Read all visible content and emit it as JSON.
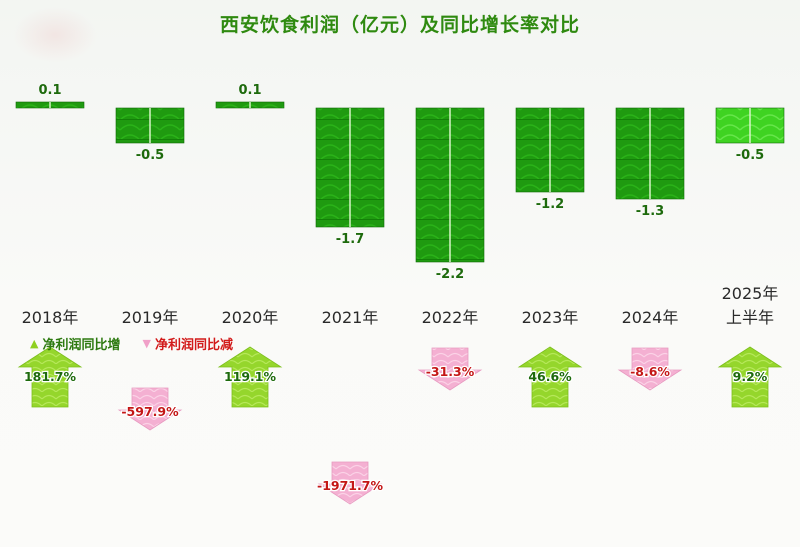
{
  "title": "西安饮食利润（亿元）及同比增长率对比",
  "legend": {
    "up_label": "净利润同比增",
    "down_label": "净利润同比减"
  },
  "colors": {
    "title": "#2f8a10",
    "bar": "#1f9a10",
    "bar_light": "#44d62a",
    "up_arrow": "#9bd832",
    "down_arrow": "#f6b3d4",
    "up_text": "#1d6a0c",
    "down_text": "#c41616"
  },
  "chart_data": {
    "type": "bar",
    "title": "西安饮食利润（亿元）及同比增长率对比",
    "categories": [
      "2018年",
      "2019年",
      "2020年",
      "2021年",
      "2022年",
      "2023年",
      "2024年",
      "2025年上半年"
    ],
    "series": [
      {
        "name": "净利润",
        "values": [
          0.1,
          -0.5,
          0.1,
          -1.7,
          -2.2,
          -1.2,
          -1.3,
          -0.5
        ]
      }
    ],
    "value_labels": [
      "0.1",
      "-0.5",
      "0.1",
      "-1.7",
      "-2.2",
      "-1.2",
      "-1.3",
      "-0.5"
    ],
    "growth_rate": {
      "values": [
        181.7,
        -597.9,
        119.1,
        -1971.7,
        -31.3,
        46.6,
        -8.6,
        9.2
      ],
      "labels": [
        "181.7%",
        "-597.9%",
        "119.1%",
        "-1971.7%",
        "-31.3%",
        "46.6%",
        "-8.6%",
        "9.2%"
      ]
    },
    "category_label_lines": [
      [
        "2018年"
      ],
      [
        "2019年"
      ],
      [
        "2020年"
      ],
      [
        "2021年"
      ],
      [
        "2022年"
      ],
      [
        "2023年"
      ],
      [
        "2024年"
      ],
      [
        "2025年",
        "上半年"
      ]
    ]
  }
}
